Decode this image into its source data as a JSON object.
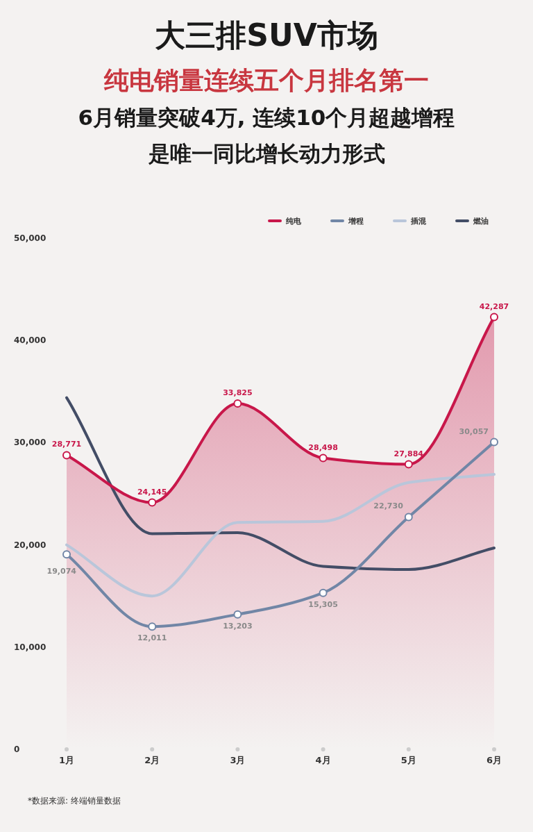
{
  "chart_data": {
    "type": "line",
    "title": "大三排SUV市场",
    "subtitle": "纯电销量连续五个月排名第一",
    "categories": [
      "1月",
      "2月",
      "3月",
      "4月",
      "5月",
      "6月"
    ],
    "series": [
      {
        "name": "纯电",
        "type": "area",
        "color": "#c8174a",
        "marker": "circle",
        "values": [
          28771,
          24145,
          33825,
          28498,
          27884,
          42287
        ],
        "value_labels": [
          "28,771",
          "24,145",
          "33,825",
          "28,498",
          "27,884",
          "42,287"
        ]
      },
      {
        "name": "增程",
        "color": "#7186a6",
        "marker": "circle",
        "values": [
          19074,
          12011,
          13203,
          15305,
          22730,
          30057
        ],
        "value_labels": [
          "19,074",
          "12,011",
          "13,203",
          "15,305",
          "22,730",
          "30,057"
        ]
      },
      {
        "name": "插混",
        "color": "#b9c6da",
        "marker": "none",
        "values": [
          20000,
          15000,
          22200,
          22300,
          26100,
          26900
        ]
      },
      {
        "name": "燃油",
        "color": "#434d66",
        "marker": "none",
        "values": [
          34400,
          21100,
          21200,
          17900,
          17600,
          19700
        ]
      }
    ],
    "ylim": [
      0,
      50000
    ],
    "yticks": [
      {
        "value": 0,
        "label": "0"
      },
      {
        "value": 10000,
        "label": "10,000"
      },
      {
        "value": 20000,
        "label": "20,000"
      },
      {
        "value": 30000,
        "label": "30,000"
      },
      {
        "value": 40000,
        "label": "40,000"
      },
      {
        "value": 50000,
        "label": "50,000"
      }
    ],
    "grid": false,
    "legend": "top right",
    "line_style": "solid",
    "annotations": [
      "6月销量突破4万, 连续10个月超越增程",
      "是唯一同比增长动力形式",
      "*数据来源: 终端销量数据"
    ]
  }
}
